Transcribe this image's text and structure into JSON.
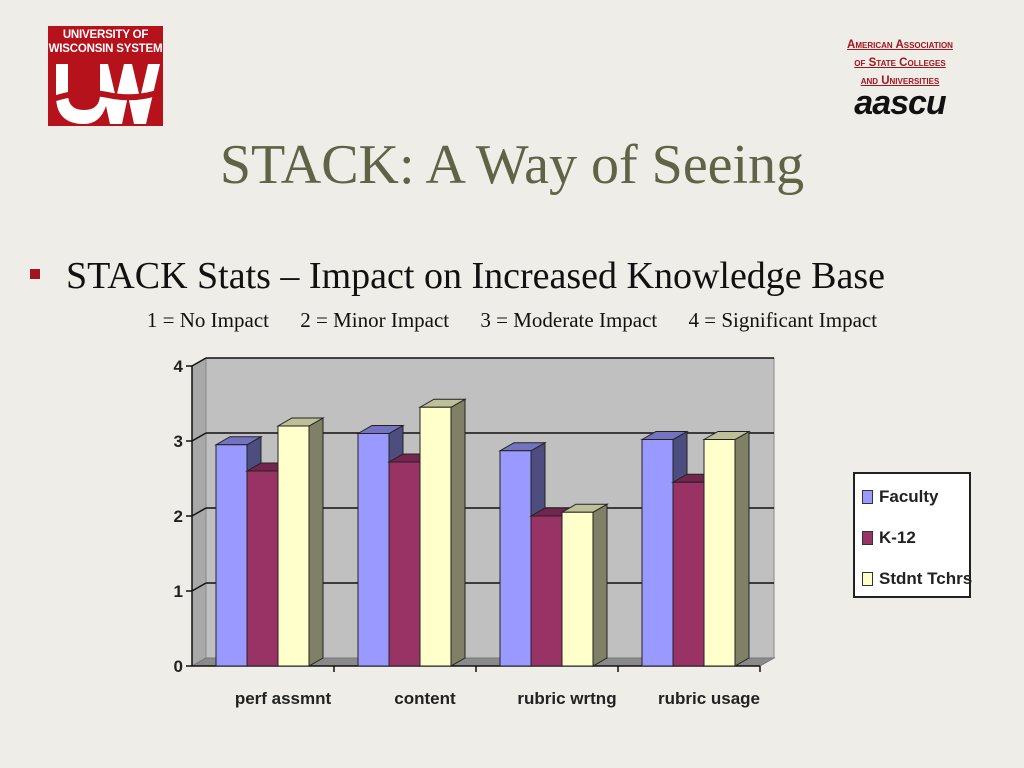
{
  "logo_left": {
    "line1": "UNIVERSITY OF",
    "line2": "WISCONSIN SYSTEM",
    "mark": "UW"
  },
  "logo_right": {
    "lines": [
      "American Association",
      "of State Colleges",
      "and Universities"
    ],
    "wordmark": "aascu"
  },
  "slide": {
    "title": "STACK: A Way of Seeing",
    "bullet": "STACK Stats – Impact on Increased Knowledge Base",
    "scale": [
      "1 = No Impact",
      "2 = Minor Impact",
      "3 = Moderate Impact",
      "4 = Significant Impact"
    ]
  },
  "colors": {
    "accent": "#a1151c",
    "title": "#5f6446",
    "plot_background": "#c0c0c0",
    "faculty": "#9999ff",
    "k12": "#993366",
    "stdnt_tchrs": "#ffffcc"
  },
  "chart_data": {
    "type": "bar",
    "bar_style": "3d-clustered",
    "categories": [
      "perf assmnt",
      "content",
      "rubric wrtng",
      "rubric usage"
    ],
    "series": [
      {
        "name": "Faculty",
        "values": [
          2.95,
          3.1,
          2.87,
          3.02
        ]
      },
      {
        "name": "K-12",
        "values": [
          2.6,
          2.72,
          2.0,
          2.45
        ]
      },
      {
        "name": "Stdnt Tchrs",
        "values": [
          3.2,
          3.45,
          2.05,
          3.02
        ]
      }
    ],
    "y_ticks": [
      "0",
      "1",
      "2",
      "3",
      "4"
    ],
    "ylim": [
      0,
      4
    ],
    "grid": true,
    "legend_position": "right"
  }
}
